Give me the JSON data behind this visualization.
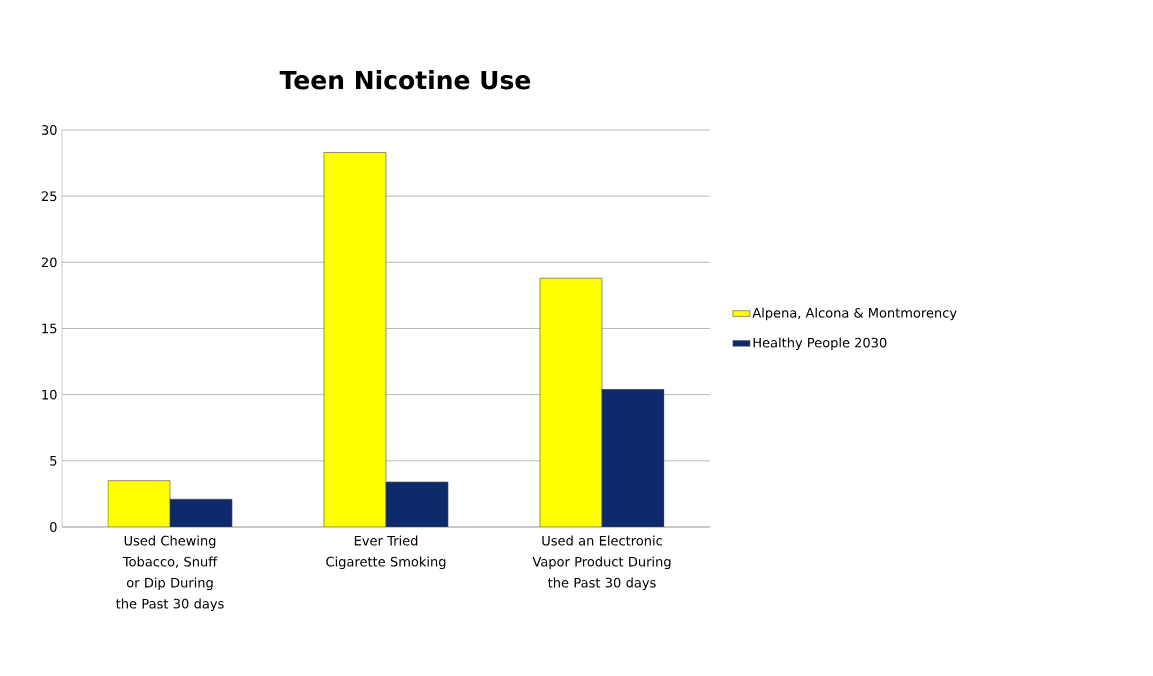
{
  "chart_data": {
    "type": "bar",
    "title": "Teen Nicotine Use",
    "categories": [
      "Used Chewing Tobacco, Snuff or Dip During the Past 30 days",
      "Ever Tried Cigarette Smoking",
      "Used an Electronic Vapor Product During the Past 30 days"
    ],
    "series": [
      {
        "name": "Alpena, Alcona & Montmorency",
        "color": "#ffff00",
        "values": [
          3.5,
          28.3,
          18.8
        ]
      },
      {
        "name": "Healthy People 2030",
        "color": "#0f2a6b",
        "values": [
          2.1,
          3.4,
          10.4
        ]
      }
    ],
    "ylim": [
      0,
      30
    ],
    "yticks": [
      0,
      5,
      10,
      15,
      20,
      25,
      30
    ],
    "grid": "y",
    "legend": "right"
  }
}
